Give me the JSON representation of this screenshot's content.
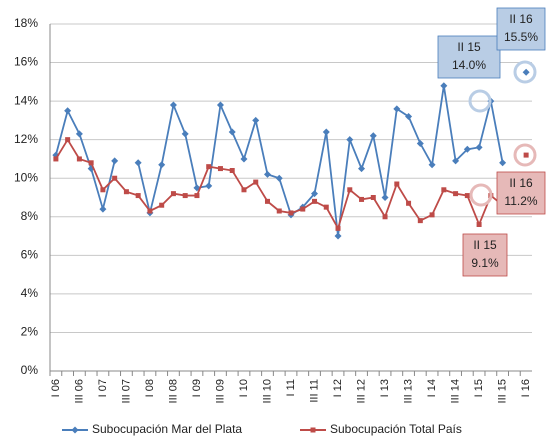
{
  "chart_data": {
    "type": "line",
    "categories": [
      "I 06",
      null,
      "III 06",
      null,
      "I 07",
      null,
      "III 07",
      null,
      "I 08",
      null,
      "III 08",
      null,
      "I 09",
      null,
      "III 09",
      null,
      "I 10",
      null,
      "III 10",
      null,
      "I 11",
      null,
      "III 11",
      null,
      "I 12",
      null,
      "III 12",
      null,
      "I 13",
      null,
      "III 13",
      null,
      "I 14",
      null,
      "III 14",
      null,
      "I 15",
      null,
      "III 15",
      null,
      "I 16"
    ],
    "series": [
      {
        "name": "Subocupación Mar del Plata",
        "color": "#4a7ebb",
        "values": [
          11.2,
          13.5,
          12.3,
          10.5,
          8.4,
          10.9,
          null,
          10.8,
          8.2,
          10.7,
          13.8,
          12.3,
          9.5,
          9.6,
          13.8,
          12.4,
          11.0,
          13.0,
          10.2,
          10.0,
          8.1,
          8.5,
          9.2,
          12.4,
          7.0,
          12.0,
          10.5,
          12.2,
          9.0,
          13.6,
          13.2,
          11.8,
          10.7,
          14.8,
          10.9,
          11.5,
          11.6,
          14.0,
          10.8,
          null,
          15.5
        ]
      },
      {
        "name": "Subocupación Total País",
        "color": "#be4b48",
        "values": [
          11.0,
          12.0,
          11.0,
          10.8,
          9.4,
          10.0,
          9.3,
          9.1,
          8.3,
          8.6,
          9.2,
          9.1,
          9.1,
          10.6,
          10.5,
          10.4,
          9.4,
          9.8,
          8.8,
          8.3,
          8.2,
          8.4,
          8.8,
          8.5,
          7.4,
          9.4,
          8.9,
          9.0,
          8.0,
          9.7,
          8.7,
          7.8,
          8.1,
          9.4,
          9.2,
          9.1,
          7.6,
          9.1,
          8.6,
          null,
          11.2
        ]
      }
    ],
    "ylim": [
      0,
      18
    ],
    "yticks": [
      {
        "value": 0,
        "label": "0%"
      },
      {
        "value": 2,
        "label": "2%"
      },
      {
        "value": 4,
        "label": "4%"
      },
      {
        "value": 6,
        "label": "6%"
      },
      {
        "value": 8,
        "label": "8%"
      },
      {
        "value": 10,
        "label": "10%"
      },
      {
        "value": 12,
        "label": "12%"
      },
      {
        "value": 14,
        "label": "14%"
      },
      {
        "value": 16,
        "label": "16%"
      },
      {
        "value": 18,
        "label": "18%"
      }
    ],
    "grid": true,
    "annotations": [
      [
        "II 15",
        "14.0%"
      ],
      [
        "II 16",
        "15.5%"
      ],
      [
        "II 16",
        "11.2%"
      ],
      [
        "II 15",
        "9.1%"
      ]
    ]
  }
}
